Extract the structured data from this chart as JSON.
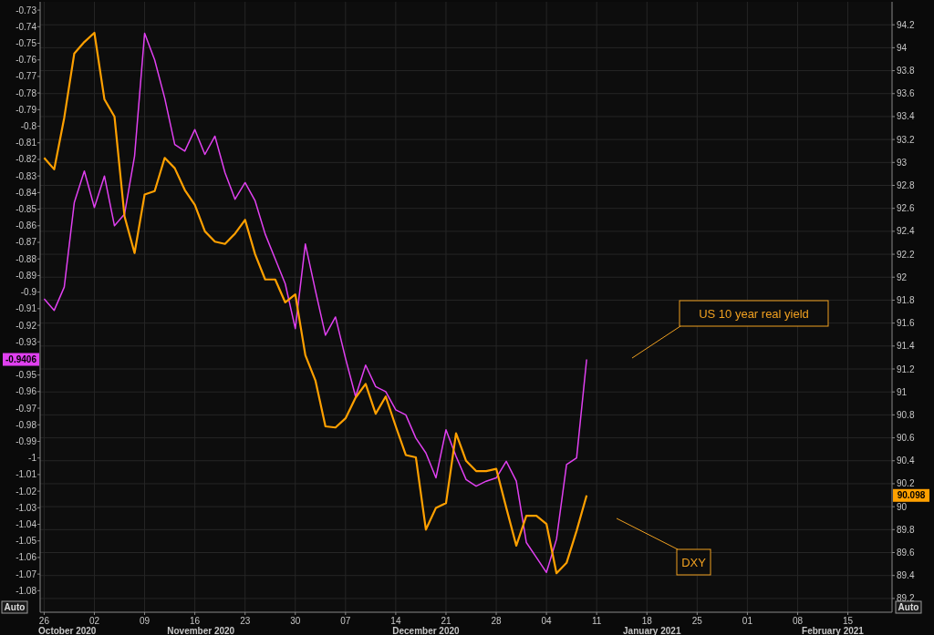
{
  "chart_data": {
    "type": "line",
    "categories": [
      "26",
      null,
      null,
      null,
      null,
      "02",
      null,
      null,
      null,
      null,
      "09",
      null,
      null,
      null,
      null,
      "16",
      null,
      null,
      null,
      null,
      "23",
      null,
      null,
      null,
      null,
      "30",
      null,
      null,
      null,
      null,
      "07",
      null,
      null,
      null,
      null,
      "14",
      null,
      null,
      null,
      null,
      "21",
      null,
      null,
      null,
      null,
      "28",
      null,
      null,
      null,
      null,
      "04",
      null,
      null,
      null,
      null,
      "11",
      null,
      null,
      null,
      null,
      "18",
      null,
      null,
      null,
      null,
      "25",
      null,
      null,
      null,
      null,
      "01",
      null,
      null,
      null,
      null,
      "08",
      null,
      null,
      null,
      null,
      "15",
      null,
      null,
      null,
      null
    ],
    "series": [
      {
        "name": "US 10 year real yield",
        "color": "#e040f0",
        "axis": "y",
        "values": [
          -0.904,
          -0.911,
          -0.897,
          -0.846,
          -0.827,
          -0.849,
          -0.83,
          -0.86,
          -0.853,
          -0.818,
          -0.744,
          -0.76,
          -0.783,
          -0.811,
          -0.815,
          -0.802,
          -0.817,
          -0.806,
          -0.828,
          -0.844,
          -0.834,
          -0.845,
          -0.865,
          -0.88,
          -0.895,
          -0.922,
          -0.871,
          -0.899,
          -0.926,
          -0.915,
          -0.94,
          -0.963,
          -0.944,
          -0.957,
          -0.96,
          -0.971,
          -0.974,
          -0.988,
          -0.997,
          -1.012,
          -0.983,
          -0.999,
          -1.013,
          -1.017,
          -1.014,
          -1.012,
          -1.002,
          -1.014,
          -1.051,
          -1.06,
          -1.069,
          -1.049,
          -1.004,
          -1.0,
          -0.9406,
          null,
          null,
          null,
          null,
          null,
          null,
          null,
          null,
          null,
          null,
          null,
          null,
          null,
          null,
          null,
          null,
          null,
          null,
          null,
          null,
          null,
          null,
          null,
          null,
          null,
          null,
          null,
          null,
          null,
          null
        ]
      },
      {
        "name": "DXY",
        "color": "#ffa000",
        "axis": "y2",
        "values": [
          93.04,
          92.94,
          93.39,
          93.95,
          94.05,
          94.13,
          93.55,
          93.4,
          92.53,
          92.21,
          92.72,
          92.75,
          93.04,
          92.95,
          92.76,
          92.63,
          92.4,
          92.31,
          92.29,
          92.38,
          92.5,
          92.2,
          91.98,
          91.98,
          91.78,
          91.85,
          91.32,
          91.1,
          90.7,
          90.69,
          90.77,
          90.95,
          91.07,
          90.81,
          90.96,
          90.7,
          90.45,
          90.43,
          89.8,
          89.99,
          90.03,
          90.64,
          90.4,
          90.31,
          90.31,
          90.33,
          89.99,
          89.66,
          89.92,
          89.92,
          89.85,
          89.42,
          89.51,
          89.79,
          90.098,
          null,
          null,
          null,
          null,
          null,
          null,
          null,
          null,
          null,
          null,
          null,
          null,
          null,
          null,
          null,
          null,
          null,
          null,
          null,
          null,
          null,
          null,
          null,
          null,
          null,
          null,
          null,
          null,
          null,
          null
        ]
      }
    ],
    "ylim": [
      -1.093,
      -0.725
    ],
    "yticks": [
      -0.73,
      -0.74,
      -0.75,
      -0.76,
      -0.77,
      -0.78,
      -0.79,
      -0.8,
      -0.81,
      -0.82,
      -0.83,
      -0.84,
      -0.85,
      -0.86,
      -0.87,
      -0.88,
      -0.89,
      -0.9,
      -0.91,
      -0.92,
      -0.93,
      -0.95,
      -0.96,
      -0.97,
      -0.98,
      -0.99,
      -1,
      -1.01,
      -1.02,
      -1.03,
      -1.04,
      -1.05,
      -1.06,
      -1.07,
      -1.08
    ],
    "y2lim": [
      89.08,
      94.4
    ],
    "y2ticks": [
      89.2,
      89.4,
      89.6,
      89.8,
      90,
      90.2,
      90.4,
      90.6,
      90.8,
      91,
      91.2,
      91.4,
      91.6,
      91.8,
      92,
      92.2,
      92.4,
      92.6,
      92.8,
      93,
      93.2,
      93.4,
      93.6,
      93.8,
      94,
      94.2
    ],
    "grid": true,
    "legend": false,
    "annotations": [
      "-0.9406",
      "90.098",
      "Auto",
      "Auto",
      "October 2020",
      "November 2020",
      "December 2020",
      "January 2021",
      "February 2021"
    ]
  }
}
